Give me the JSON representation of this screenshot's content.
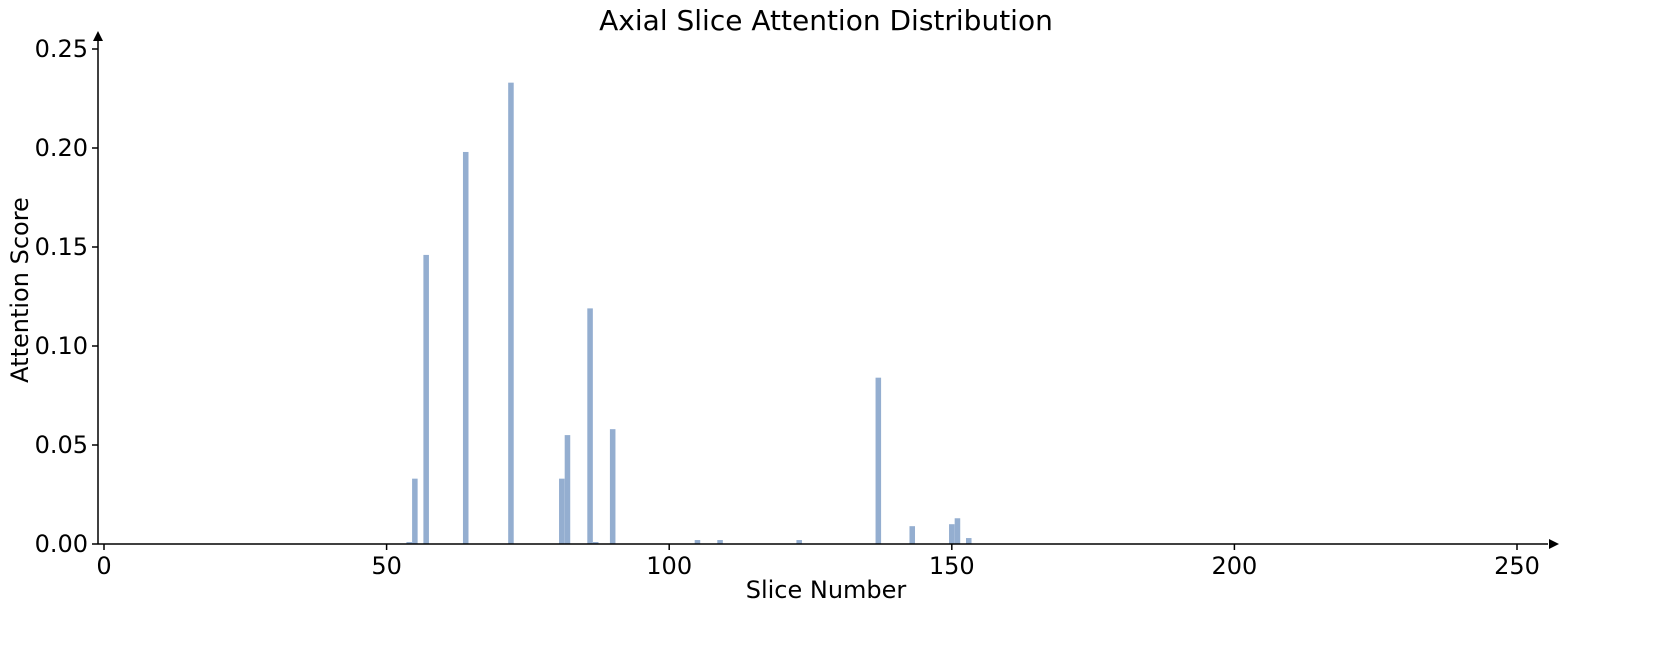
{
  "chart_data": {
    "type": "bar",
    "title": "Axial Slice Attention Distribution",
    "xlabel": "Slice Number",
    "ylabel": "Attention Score",
    "xlim": [
      0,
      256
    ],
    "ylim": [
      0,
      0.25
    ],
    "xticks": [
      0,
      50,
      100,
      150,
      200,
      250
    ],
    "yticks": [
      0.0,
      0.05,
      0.1,
      0.15,
      0.2,
      0.25
    ],
    "ytick_labels": [
      "0.00",
      "0.05",
      "0.10",
      "0.15",
      "0.20",
      "0.25"
    ],
    "grid": false,
    "bar_color": "#94aed0",
    "bar_width": 1,
    "x": [
      54,
      55,
      57,
      64,
      72,
      81,
      82,
      86,
      87,
      90,
      105,
      109,
      123,
      137,
      143,
      150,
      151,
      153
    ],
    "values": [
      0.001,
      0.033,
      0.146,
      0.198,
      0.233,
      0.033,
      0.055,
      0.119,
      0.001,
      0.058,
      0.002,
      0.002,
      0.002,
      0.084,
      0.009,
      0.01,
      0.013,
      0.003
    ]
  }
}
